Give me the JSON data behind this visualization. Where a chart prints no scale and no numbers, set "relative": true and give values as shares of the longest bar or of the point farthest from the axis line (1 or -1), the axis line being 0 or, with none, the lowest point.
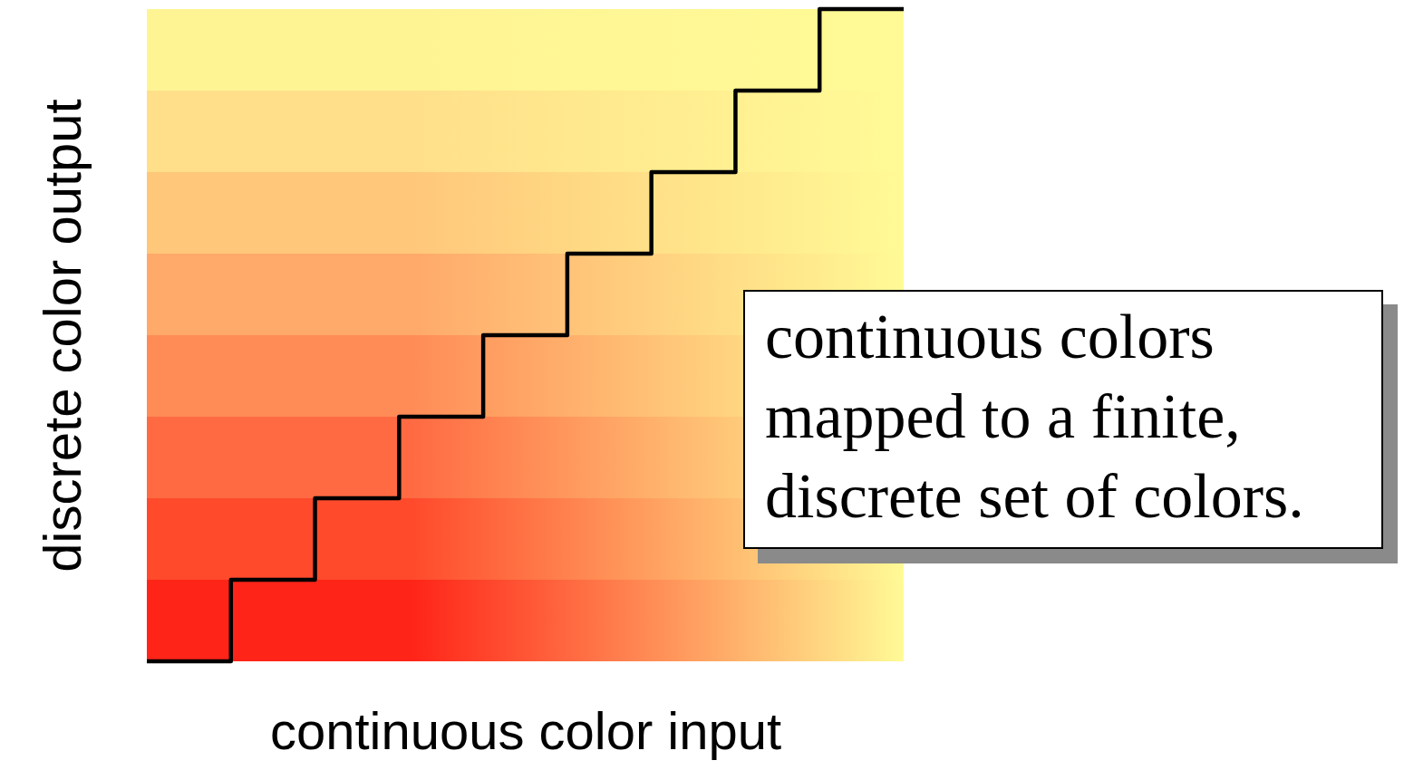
{
  "chart_data": {
    "type": "step",
    "relative": true,
    "xlabel": "continuous color input",
    "ylabel": "discrete color output",
    "categories": [
      null,
      null,
      null,
      null,
      null,
      null,
      null,
      null,
      null,
      null
    ],
    "values": [
      0,
      0.125,
      0.25,
      0.375,
      0.5,
      0.625,
      0.75,
      0.875,
      1,
      1
    ],
    "color": "#000000",
    "annotations": [
      "continuous colors\nmapped to a finite,\ndiscrete set of colors."
    ]
  }
}
